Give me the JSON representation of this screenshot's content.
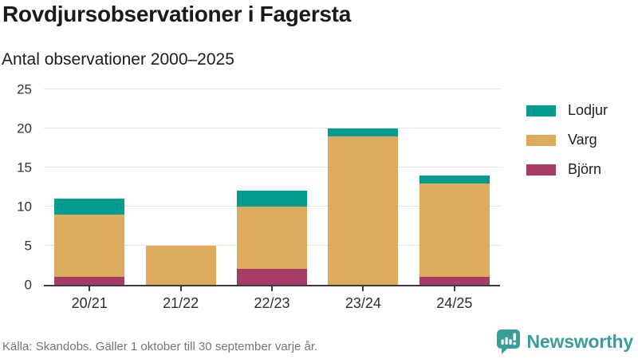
{
  "header": {
    "title": "Rovdjursobservationer i Fagersta",
    "subtitle": "Antal observationer 2000–2025"
  },
  "chart_data": {
    "type": "bar",
    "stacked": true,
    "title": "Rovdjursobservationer i Fagersta",
    "subtitle": "Antal observationer 2000–2025",
    "categories": [
      "20/21",
      "21/22",
      "22/23",
      "23/24",
      "24/25"
    ],
    "series": [
      {
        "name": "Björn",
        "color": "#a43c66",
        "values": [
          1,
          0,
          2,
          0,
          1
        ]
      },
      {
        "name": "Varg",
        "color": "#dcab5c",
        "values": [
          8,
          5,
          8,
          19,
          12
        ]
      },
      {
        "name": "Lodjur",
        "color": "#019c90",
        "values": [
          2,
          0,
          2,
          1,
          1
        ]
      }
    ],
    "stack_totals": [
      11,
      5,
      12,
      20,
      14
    ],
    "ylim": [
      0,
      25
    ],
    "yticks": [
      0,
      5,
      10,
      15,
      20,
      25
    ],
    "xlabel": "",
    "ylabel": "",
    "grid": true,
    "legend_position": "right",
    "legend_order": [
      "Lodjur",
      "Varg",
      "Björn"
    ]
  },
  "footer": {
    "source": "Källa: Skandobs. Gäller 1 oktober till 30 september varje år.",
    "brand": "Newsworthy"
  },
  "colors": {
    "lodjur": "#019c90",
    "varg": "#dcab5c",
    "bjorn": "#a43c66",
    "brand_teal": "#3a9e98",
    "axis": "#3c3c3c",
    "gridline": "#e3e3e3",
    "muted_text": "#757575"
  }
}
